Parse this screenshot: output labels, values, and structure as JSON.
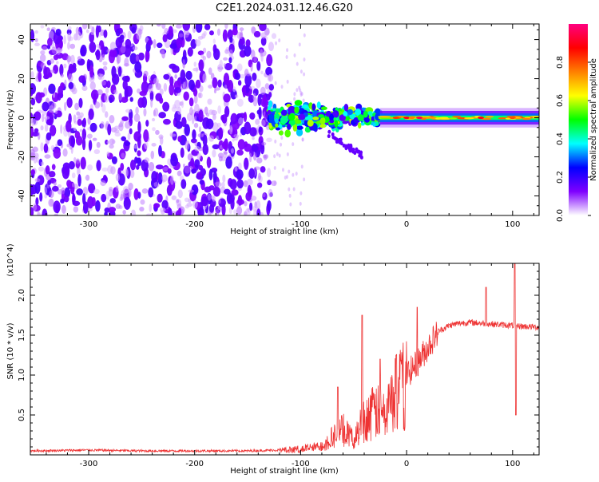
{
  "title": "C2E1.2024.031.12.46.G20",
  "chart_data": [
    {
      "type": "heatmap",
      "xlabel": "Height of straight line (km)",
      "ylabel": "Frequency (Hz)",
      "xlim": [
        -355,
        125
      ],
      "ylim": [
        -50,
        48
      ],
      "x_ticks": [
        -300,
        -200,
        -100,
        0,
        100
      ],
      "y_ticks": [
        -40,
        -20,
        0,
        20,
        40
      ],
      "colorbar": {
        "label": "Normalized spectral amplitude",
        "range": [
          0,
          1
        ],
        "ticks": [
          "0.0",
          "0.2",
          "0.4",
          "0.6",
          "0.8"
        ],
        "tick_values": [
          0.0,
          0.2,
          0.4,
          0.6,
          0.8
        ],
        "colormap": [
          "#ffffff",
          "#7f00ff",
          "#0000ff",
          "#00ffff",
          "#00ff00",
          "#ffff00",
          "#ff8000",
          "#ff0000",
          "#ff0080"
        ]
      },
      "regions": [
        {
          "x_range": [
            -355,
            -125
          ],
          "y_range": [
            -50,
            48
          ],
          "amplitude": [
            0.05,
            0.25
          ]
        },
        {
          "x_range": [
            -130,
            -25
          ],
          "y_range": [
            -12,
            12
          ],
          "amplitude": [
            0.2,
            0.6
          ]
        },
        {
          "x_range": [
            -25,
            125
          ],
          "y_range": [
            -3,
            3
          ],
          "amplitude": [
            0.4,
            0.9
          ]
        }
      ]
    },
    {
      "type": "line",
      "xlabel": "Height of straight line (km)",
      "ylabel": "SNR (10 * v/v)",
      "yscale_label": "(x10^4)",
      "xlim": [
        -355,
        125
      ],
      "ylim": [
        0,
        2.4
      ],
      "x_ticks": [
        -300,
        -200,
        -100,
        0,
        100
      ],
      "y_ticks": [
        "0.5",
        "1.0",
        "1.5",
        "2.0"
      ],
      "y_tick_values": [
        0.5,
        1.0,
        1.5,
        2.0
      ],
      "color": "#ee3333",
      "series_profile": {
        "x": [
          -355,
          -300,
          -250,
          -200,
          -150,
          -120,
          -100,
          -80,
          -70,
          -60,
          -50,
          -40,
          -30,
          -20,
          -10,
          0,
          10,
          20,
          30,
          40,
          50,
          60,
          70,
          80,
          90,
          100,
          110,
          125
        ],
        "y": [
          0.05,
          0.06,
          0.05,
          0.05,
          0.05,
          0.06,
          0.08,
          0.12,
          0.25,
          0.35,
          0.2,
          0.5,
          0.6,
          0.55,
          0.9,
          1.0,
          1.15,
          1.35,
          1.55,
          1.62,
          1.65,
          1.66,
          1.65,
          1.64,
          1.63,
          1.62,
          1.61,
          1.6
        ]
      },
      "spikes": [
        {
          "x": -65,
          "y": 0.85
        },
        {
          "x": -42,
          "y": 1.75
        },
        {
          "x": -25,
          "y": 1.2
        },
        {
          "x": -10,
          "y": 1.25
        },
        {
          "x": 10,
          "y": 1.85
        },
        {
          "x": 75,
          "y": 2.1
        },
        {
          "x": 102,
          "y": 2.4
        },
        {
          "x": 103,
          "y": 0.5
        }
      ]
    }
  ]
}
